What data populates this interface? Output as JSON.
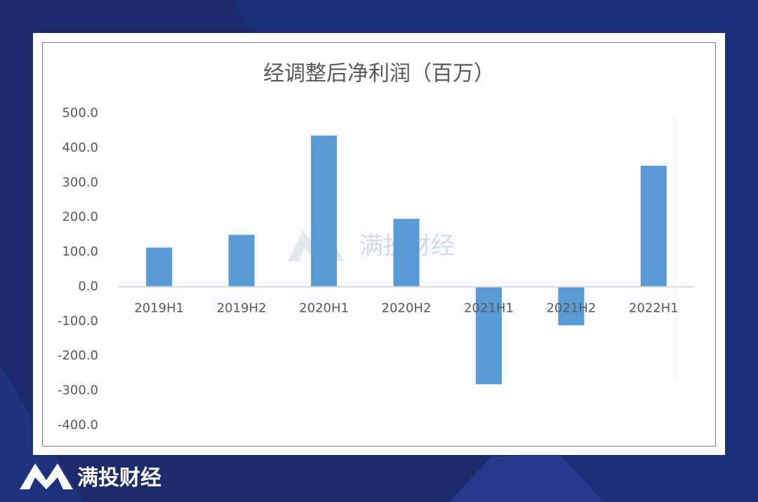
{
  "chart_data": {
    "type": "bar",
    "title": "经调整后净利润（百万）",
    "categories": [
      "2019H1",
      "2019H2",
      "2020H1",
      "2020H2",
      "2021H1",
      "2021H2",
      "2022H1"
    ],
    "values": [
      113,
      150,
      436,
      196,
      -281,
      -111,
      349
    ],
    "color": "#5b9bd5",
    "ylim": [
      -400,
      500
    ],
    "yticks": [
      {
        "value": -400,
        "label": "-400.0"
      },
      {
        "value": -300,
        "label": "-300.0"
      },
      {
        "value": -200,
        "label": "-200.0"
      },
      {
        "value": -100,
        "label": "-100.0"
      },
      {
        "value": 0,
        "label": "0.0"
      },
      {
        "value": 100,
        "label": "100.0"
      },
      {
        "value": 200,
        "label": "200.0"
      },
      {
        "value": 300,
        "label": "300.0"
      },
      {
        "value": 400,
        "label": "400.0"
      },
      {
        "value": 500,
        "label": "500.0"
      }
    ],
    "grid": false
  },
  "watermark": "满投财经",
  "brand": "满投财经"
}
